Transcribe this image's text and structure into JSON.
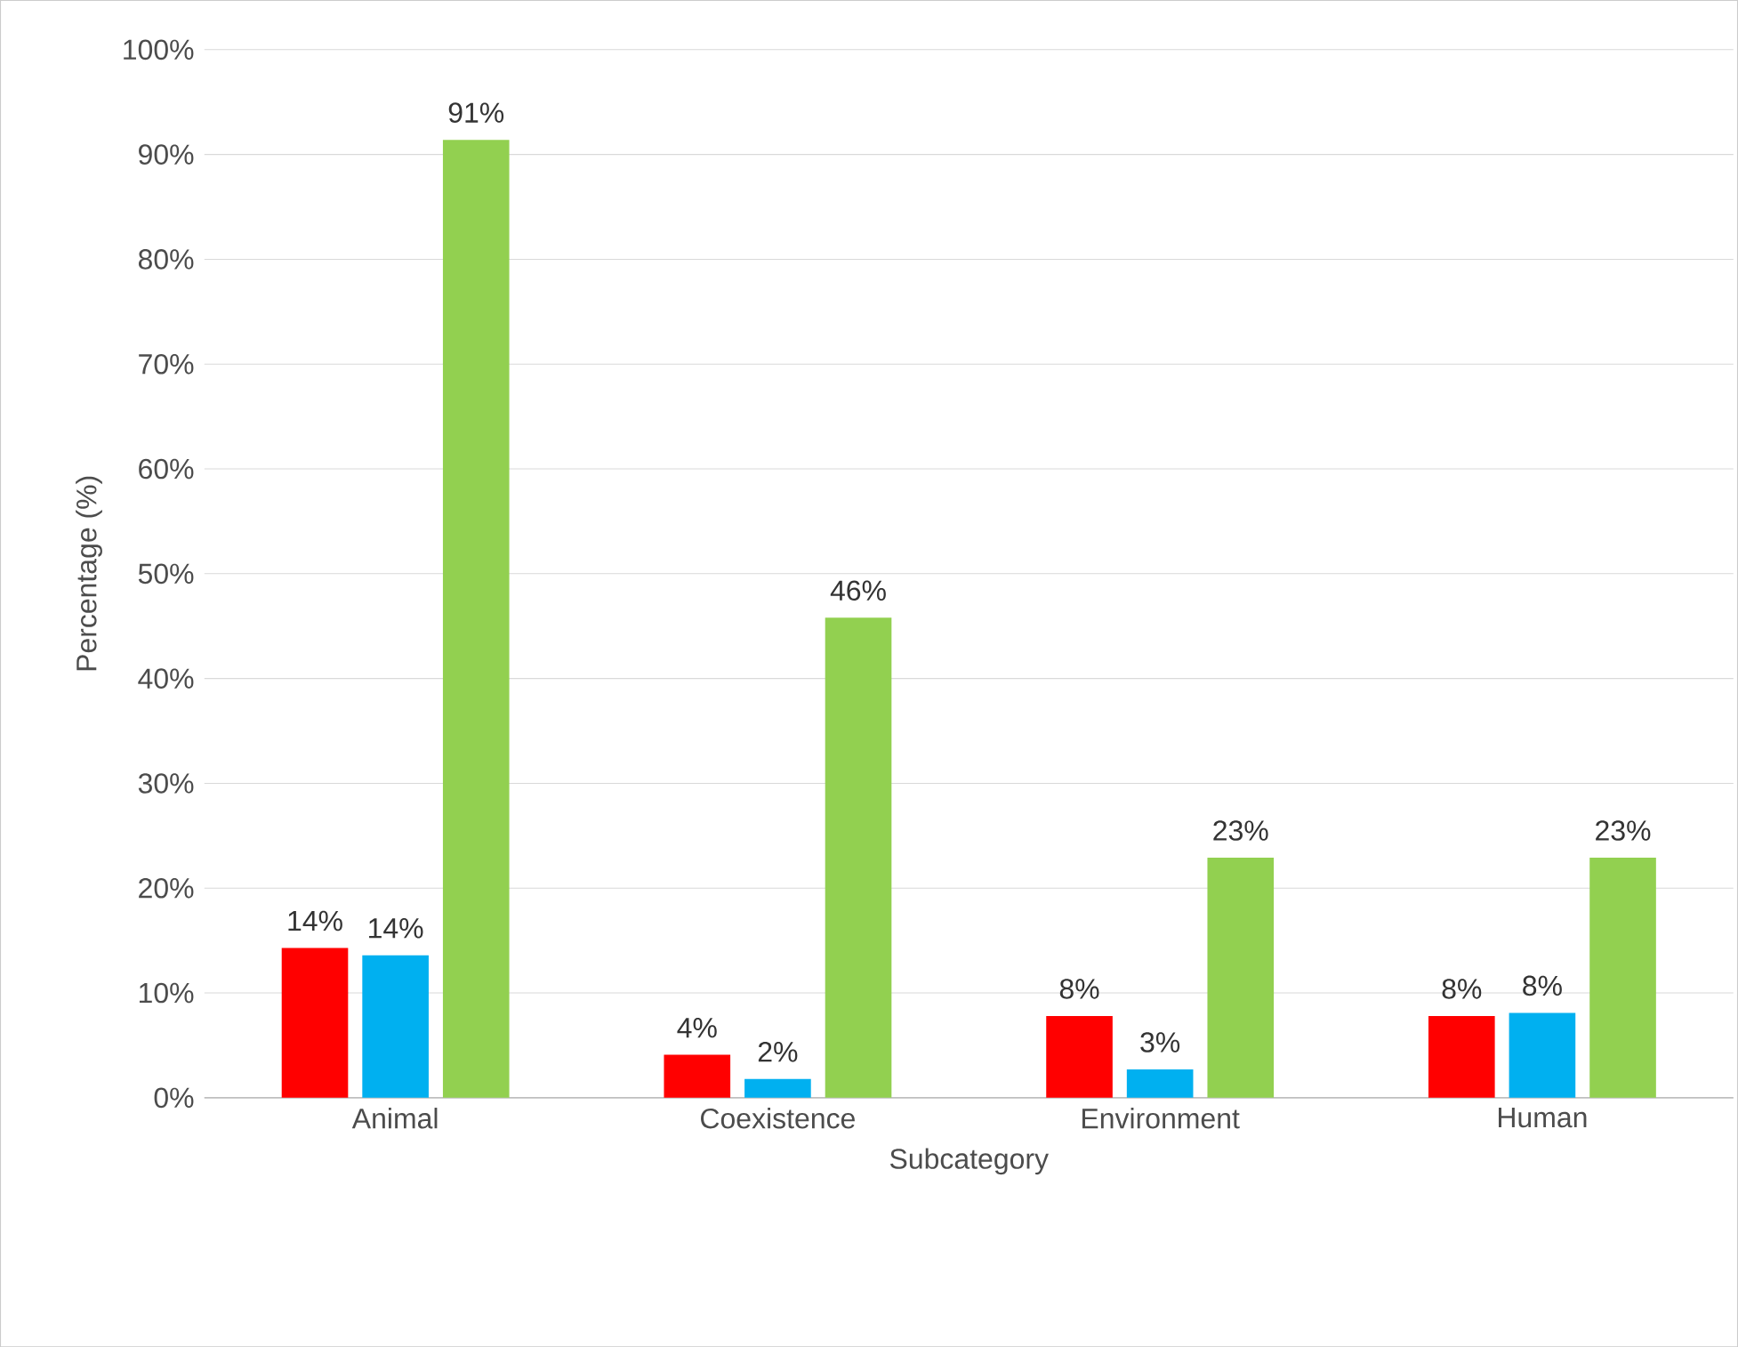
{
  "chart_data": {
    "type": "bar",
    "xlabel": "Subcategory",
    "ylabel": "Percentage (%)",
    "categories": [
      "Animal",
      "Coexistence",
      "Environment",
      "Human"
    ],
    "series": [
      {
        "color": "#ff0000",
        "values": [
          14.3,
          4.1,
          7.8,
          7.8
        ],
        "value_labels": [
          "14%",
          "4%",
          "8%",
          "8%"
        ]
      },
      {
        "color": "#00b0f0",
        "values": [
          13.6,
          1.8,
          2.7,
          8.1
        ],
        "value_labels": [
          "14%",
          "2%",
          "3%",
          "8%"
        ]
      },
      {
        "color": "#92d050",
        "values": [
          91.4,
          45.8,
          22.9,
          22.9
        ],
        "value_labels": [
          "91%",
          "46%",
          "23%",
          "23%"
        ]
      }
    ],
    "ylim": [
      0,
      100
    ],
    "yticks": [
      {
        "value": 0,
        "label": "0%"
      },
      {
        "value": 10,
        "label": "10%"
      },
      {
        "value": 20,
        "label": "20%"
      },
      {
        "value": 30,
        "label": "30%"
      },
      {
        "value": 40,
        "label": "40%"
      },
      {
        "value": 50,
        "label": "50%"
      },
      {
        "value": 60,
        "label": "60%"
      },
      {
        "value": 70,
        "label": "70%"
      },
      {
        "value": 80,
        "label": "80%"
      },
      {
        "value": 90,
        "label": "90%"
      },
      {
        "value": 100,
        "label": "100%"
      }
    ],
    "grid": "y"
  }
}
